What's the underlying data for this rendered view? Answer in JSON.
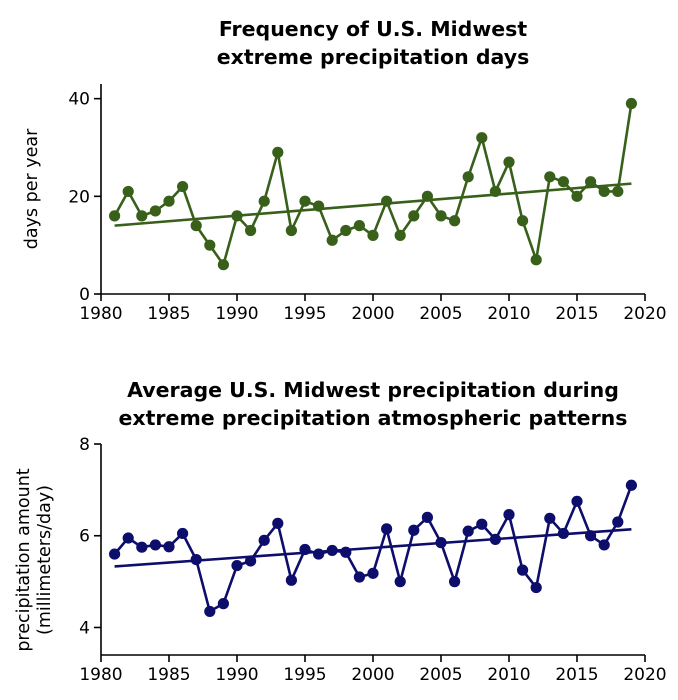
{
  "chart_data": [
    {
      "type": "line",
      "title": [
        "Frequency of U.S. Midwest",
        "extreme precipitation days"
      ],
      "xlabel": "",
      "ylabel": [
        "days per year"
      ],
      "xlim": [
        1980,
        2020
      ],
      "ylim": [
        0,
        43
      ],
      "xticks": [
        1980,
        1985,
        1990,
        1995,
        2000,
        2005,
        2010,
        2015,
        2020
      ],
      "yticks": [
        0,
        20,
        40
      ],
      "color": "#38601a",
      "x": [
        1981,
        1982,
        1983,
        1984,
        1985,
        1986,
        1987,
        1988,
        1989,
        1990,
        1991,
        1992,
        1993,
        1994,
        1995,
        1996,
        1997,
        1998,
        1999,
        2000,
        2001,
        2002,
        2003,
        2004,
        2005,
        2006,
        2007,
        2008,
        2009,
        2010,
        2011,
        2012,
        2013,
        2014,
        2015,
        2016,
        2017,
        2018,
        2019
      ],
      "values": [
        16,
        21,
        16,
        17,
        19,
        22,
        14,
        10,
        6,
        16,
        13,
        19,
        29,
        13,
        19,
        18,
        11,
        13,
        14,
        12,
        19,
        12,
        16,
        20,
        16,
        15,
        24,
        32,
        21,
        27,
        15,
        7,
        24,
        23,
        20,
        23,
        21,
        21,
        39
      ],
      "trend": {
        "x": [
          1981,
          2019
        ],
        "y": [
          14.0,
          22.6
        ]
      }
    },
    {
      "type": "line",
      "title": [
        "Average U.S. Midwest precipitation during",
        "extreme precipitation atmospheric patterns"
      ],
      "xlabel": "",
      "ylabel": [
        "precipitation amount",
        "(millimeters/day)"
      ],
      "xlim": [
        1980,
        2020
      ],
      "ylim": [
        3.4,
        8.0
      ],
      "xticks": [
        1980,
        1985,
        1990,
        1995,
        2000,
        2005,
        2010,
        2015,
        2020
      ],
      "yticks": [
        4,
        6,
        8
      ],
      "color": "#0d0d6b",
      "x": [
        1981,
        1982,
        1983,
        1984,
        1985,
        1986,
        1987,
        1988,
        1989,
        1990,
        1991,
        1992,
        1993,
        1994,
        1995,
        1996,
        1997,
        1998,
        1999,
        2000,
        2001,
        2002,
        2003,
        2004,
        2005,
        2006,
        2007,
        2008,
        2009,
        2010,
        2011,
        2012,
        2013,
        2014,
        2015,
        2016,
        2017,
        2018,
        2019
      ],
      "values": [
        5.6,
        5.95,
        5.75,
        5.8,
        5.76,
        6.05,
        5.48,
        4.35,
        4.52,
        5.35,
        5.45,
        5.9,
        6.27,
        5.03,
        5.7,
        5.6,
        5.68,
        5.64,
        5.1,
        5.18,
        6.15,
        5.0,
        6.12,
        6.4,
        5.85,
        5.0,
        6.1,
        6.25,
        5.92,
        6.46,
        5.25,
        4.87,
        6.38,
        6.05,
        6.75,
        6.0,
        5.8,
        6.3,
        7.1
      ],
      "trend": {
        "x": [
          1981,
          2019
        ],
        "y": [
          5.33,
          6.14
        ]
      }
    }
  ]
}
